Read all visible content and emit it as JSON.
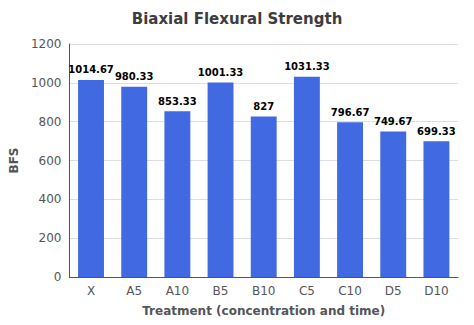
{
  "chart_data": {
    "type": "bar",
    "title": "Biaxial Flexural Strength",
    "xlabel": "Treatment (concentration and time)",
    "ylabel": "BFS",
    "categories": [
      "X",
      "A5",
      "A10",
      "B5",
      "B10",
      "C5",
      "C10",
      "D5",
      "D10"
    ],
    "values": [
      1014.67,
      980.33,
      853.33,
      1001.33,
      827,
      1031.33,
      796.67,
      749.67,
      699.33
    ],
    "color": "#4169E1",
    "ylim": [
      0,
      1200
    ],
    "yticks": [
      0,
      200,
      400,
      600,
      800,
      1000,
      1200
    ],
    "grid": true,
    "data_labels": true
  }
}
